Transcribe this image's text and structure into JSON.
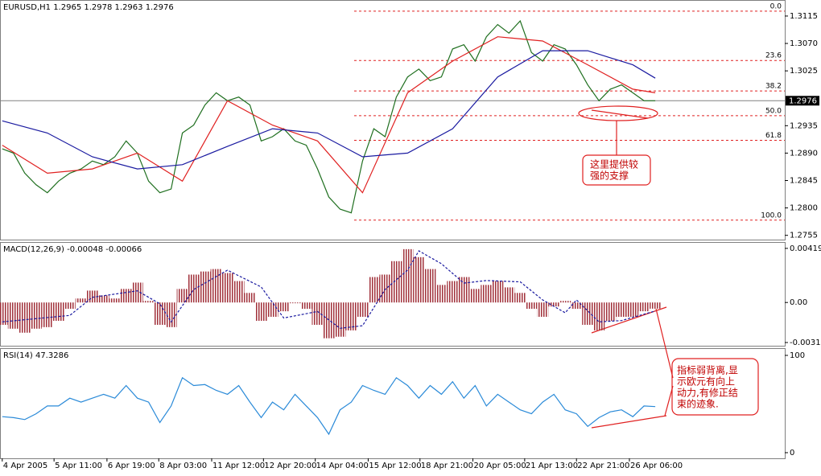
{
  "chart_data": [
    {
      "type": "line",
      "title": "EURUSD,H1  1.2965 1.2978 1.2963 1.2976",
      "xlim": [
        -0.2,
        69.5
      ],
      "ylim": [
        1.2748,
        1.314
      ],
      "yticks": [
        1.3115,
        {
          "value": 1.307,
          "label": "1.3070"
        },
        1.3025,
        1.2935,
        {
          "value": 1.289,
          "label": "1.2890"
        },
        1.2845,
        {
          "value": 1.28,
          "label": "1.2800"
        },
        1.2755
      ],
      "last_price": 1.2976,
      "x": [
        0,
        1,
        2,
        3,
        4,
        5,
        6,
        7,
        8,
        9,
        10,
        11,
        12,
        13,
        14,
        15,
        16,
        17,
        18,
        19,
        20,
        21,
        22,
        23,
        24,
        25,
        26,
        27,
        28,
        29,
        30,
        31,
        32,
        33,
        34,
        35,
        36,
        37,
        38,
        39,
        40,
        41,
        42,
        43,
        44,
        45,
        46,
        47,
        48,
        49,
        50,
        51,
        52,
        53,
        54,
        55,
        56,
        57,
        58
      ],
      "series": [
        {
          "color": "#1f6f1f",
          "values": [
            1.2897,
            1.289,
            1.2857,
            1.2838,
            1.2825,
            1.2844,
            1.2857,
            1.2864,
            1.2877,
            1.2871,
            1.2884,
            1.291,
            1.289,
            1.2844,
            1.2825,
            1.2831,
            1.2923,
            1.2936,
            1.2969,
            1.2989,
            1.2976,
            1.2982,
            1.2969,
            1.291,
            1.2917,
            1.293,
            1.291,
            1.2903,
            1.2864,
            1.2818,
            1.2798,
            1.2792,
            1.2877,
            1.293,
            1.2917,
            1.2982,
            1.3015,
            1.3028,
            1.3009,
            1.3015,
            1.3061,
            1.3068,
            1.3041,
            1.3081,
            1.3101,
            1.3087,
            1.3107,
            1.3055,
            1.3041,
            1.3068,
            1.3061,
            1.3035,
            1.3002,
            1.2976,
            1.2995,
            1.3002,
            1.2989,
            1.2976,
            1.2976
          ]
        },
        {
          "color": "#e02020",
          "x": [
            0,
            4,
            8,
            12,
            16,
            20,
            24,
            28,
            32,
            36,
            40,
            44,
            48,
            52,
            56,
            58
          ],
          "values": [
            1.2903,
            1.2857,
            1.2864,
            1.289,
            1.2844,
            1.2976,
            1.2936,
            1.291,
            1.2825,
            1.2989,
            1.3041,
            1.3081,
            1.3074,
            1.3035,
            1.2995,
            1.2989
          ]
        },
        {
          "color": "#1a1aa0",
          "x": [
            0,
            4,
            8,
            12,
            16,
            20,
            24,
            28,
            32,
            36,
            40,
            44,
            48,
            52,
            56,
            58
          ],
          "values": [
            1.2943,
            1.2923,
            1.2884,
            1.2864,
            1.2871,
            1.2901,
            1.293,
            1.2923,
            1.2884,
            1.289,
            1.293,
            1.3015,
            1.3058,
            1.3058,
            1.3035,
            1.3013
          ]
        }
      ],
      "fibonacci": {
        "high": 1.3123,
        "low": 1.278,
        "color": "#e02020",
        "levels": [
          {
            "value": 0,
            "label": "0.0"
          },
          23.6,
          38.2,
          {
            "value": 50,
            "label": "50.0"
          },
          61.8,
          {
            "value": 100,
            "label": "100.0"
          }
        ]
      },
      "annotation": [
        "这里提供较",
        "强的支撑"
      ]
    },
    {
      "type": "bar",
      "title": "MACD(12,26,9) -0.00048 -0.00066",
      "xlim": [
        -0.2,
        69.5
      ],
      "ylim": [
        -0.00335,
        0.00462
      ],
      "yticks": [
        0.00419,
        {
          "value": 0,
          "label": "0.00"
        },
        -0.0031
      ],
      "x": [
        0,
        1,
        2,
        3,
        4,
        5,
        6,
        7,
        8,
        9,
        10,
        11,
        12,
        13,
        14,
        15,
        16,
        17,
        18,
        19,
        20,
        21,
        22,
        23,
        24,
        25,
        26,
        27,
        28,
        29,
        30,
        31,
        32,
        33,
        34,
        35,
        36,
        37,
        38,
        39,
        40,
        41,
        42,
        43,
        44,
        45,
        46,
        47,
        48,
        49,
        50,
        51,
        52,
        53,
        54,
        55,
        56,
        57,
        58
      ],
      "series": [
        {
          "type": "bar",
          "color": "#a0303a",
          "values": [
            -0.00173,
            -0.00203,
            -0.00234,
            -0.00203,
            -0.00191,
            -0.00142,
            -0.00049,
            0.00031,
            0.00092,
            0.00055,
            0.00031,
            0.00105,
            0.00154,
            0.00012,
            -0.00173,
            -0.00191,
            0.00105,
            0.00216,
            0.0024,
            0.00259,
            0.00228,
            0.00166,
            0.00074,
            -0.00142,
            -0.00111,
            -0.00068,
            -6e-05,
            -0.00049,
            -0.00173,
            -0.00277,
            -0.00265,
            -0.00216,
            -0.00111,
            0.00197,
            0.00216,
            0.0032,
            0.00413,
            0.00351,
            0.00259,
            0.00136,
            0.00166,
            0.00197,
            0.00105,
            0.00136,
            0.00166,
            0.00117,
            0.00074,
            -0.00049,
            -0.00111,
            -0.00031,
            0.00012,
            -0.00049,
            -0.00173,
            -0.00216,
            -0.00142,
            -0.00111,
            -0.00111,
            -0.00068,
            -0.00048
          ]
        },
        {
          "type": "line",
          "color": "#1a1aa0",
          "x": [
            0,
            6,
            8,
            12,
            14,
            15,
            17,
            20,
            23,
            25,
            28,
            30,
            32,
            34,
            36,
            37,
            39,
            41,
            43,
            46,
            48,
            50,
            51,
            53,
            55,
            58
          ],
          "values": [
            -0.0015,
            -0.001,
            0.0004,
            0.0009,
            -0.0001,
            -0.0015,
            0.001,
            0.0025,
            0.0012,
            -0.0012,
            -0.0007,
            -0.002,
            -0.0018,
            0.001,
            0.0025,
            0.004,
            0.003,
            0.0015,
            0.0017,
            0.0016,
            0.0002,
            -0.0008,
            0.0002,
            -0.0015,
            -0.0014,
            -0.00066
          ]
        }
      ],
      "annotation": [
        "指标弱背离,显",
        "示欧元有向上",
        "动力,有修正结",
        "束的迹象."
      ]
    },
    {
      "type": "line",
      "title": "RSI(14) 47.3286",
      "xlim": [
        -0.2,
        69.5
      ],
      "ylim": [
        -5.8,
        106.6
      ],
      "yticks": [
        100,
        0
      ],
      "x": [
        0,
        1,
        2,
        3,
        4,
        5,
        6,
        7,
        8,
        9,
        10,
        11,
        12,
        13,
        14,
        15,
        16,
        17,
        18,
        19,
        20,
        21,
        22,
        23,
        24,
        25,
        26,
        27,
        28,
        29,
        30,
        31,
        32,
        33,
        34,
        35,
        36,
        37,
        38,
        39,
        40,
        41,
        42,
        43,
        44,
        45,
        46,
        47,
        48,
        49,
        50,
        51,
        52,
        53,
        54,
        55,
        56,
        57,
        58
      ],
      "series": [
        {
          "color": "#2a8ad8",
          "values": [
            37,
            36,
            34,
            40,
            48,
            48,
            56,
            52,
            56,
            60,
            56,
            69,
            56,
            52,
            31,
            48,
            77,
            69,
            70,
            64,
            60,
            69,
            52,
            36,
            52,
            44,
            60,
            48,
            36,
            19,
            44,
            52,
            69,
            64,
            60,
            77,
            69,
            56,
            69,
            60,
            73,
            56,
            69,
            48,
            60,
            52,
            44,
            40,
            52,
            60,
            44,
            40,
            27,
            36,
            42,
            44,
            37,
            48,
            47.3286
          ]
        }
      ],
      "xticks": [
        {
          "value": 0,
          "label": "4 Apr 2005"
        },
        {
          "value": 4.6,
          "label": "5 Apr 11:00"
        },
        {
          "value": 9.3,
          "label": "6 Apr 19:00"
        },
        {
          "value": 13.9,
          "label": "8 Apr 03:00"
        },
        {
          "value": 18.6,
          "label": "11 Apr 12:00"
        },
        {
          "value": 23.2,
          "label": "12 Apr 20:00"
        },
        {
          "value": 27.8,
          "label": "14 Apr 04:00"
        },
        {
          "value": 32.5,
          "label": "15 Apr 12:00"
        },
        {
          "value": 37.1,
          "label": "18 Apr 21:00"
        },
        {
          "value": 41.8,
          "label": "20 Apr 05:00"
        },
        {
          "value": 46.4,
          "label": "21 Apr 13:00"
        },
        {
          "value": 51.0,
          "label": "22 Apr 21:00"
        },
        {
          "value": 55.7,
          "label": "26 Apr 06:00"
        }
      ]
    }
  ]
}
